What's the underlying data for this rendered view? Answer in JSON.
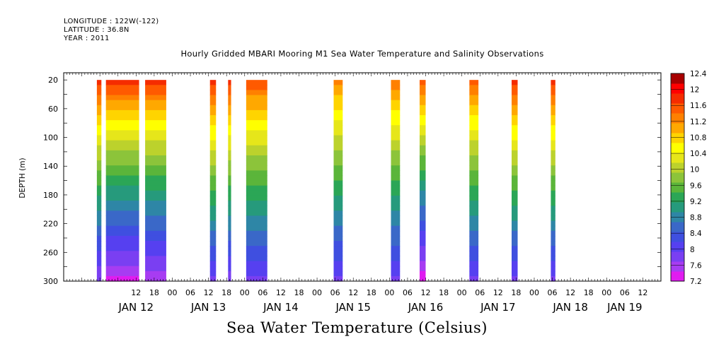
{
  "header": {
    "longitude": "LONGITUDE : 122W(-122)",
    "latitude": "LATITUDE : 36.8N",
    "year": "YEAR : 2011"
  },
  "chart_data": {
    "type": "heatmap",
    "title": "Hourly Gridded MBARI Mooring M1 Sea Water Temperature and Salinity Observations",
    "xlabel": "",
    "ylabel": "DEPTH (m)",
    "bottom_title": "Sea Water Temperature (Celsius)",
    "x_hours_range": [
      0,
      174
    ],
    "xlim_hours_since_jan12_00": [
      0,
      174
    ],
    "ylim": [
      300,
      10
    ],
    "y_ticks": [
      20,
      60,
      100,
      140,
      180,
      220,
      260,
      300
    ],
    "x_hour_ticks": [
      {
        "h": 12,
        "label": "12"
      },
      {
        "h": 18,
        "label": "18"
      },
      {
        "h": 24,
        "label": "00"
      },
      {
        "h": 30,
        "label": "06"
      },
      {
        "h": 36,
        "label": "12"
      },
      {
        "h": 42,
        "label": "18"
      },
      {
        "h": 48,
        "label": "00"
      },
      {
        "h": 54,
        "label": "06"
      },
      {
        "h": 60,
        "label": "12"
      },
      {
        "h": 66,
        "label": "18"
      },
      {
        "h": 72,
        "label": "00"
      },
      {
        "h": 78,
        "label": "06"
      },
      {
        "h": 84,
        "label": "12"
      },
      {
        "h": 90,
        "label": "18"
      },
      {
        "h": 96,
        "label": "00"
      },
      {
        "h": 102,
        "label": "06"
      },
      {
        "h": 108,
        "label": "12"
      },
      {
        "h": 114,
        "label": "18"
      },
      {
        "h": 120,
        "label": "00"
      },
      {
        "h": 126,
        "label": "06"
      },
      {
        "h": 132,
        "label": "12"
      },
      {
        "h": 138,
        "label": "18"
      },
      {
        "h": 144,
        "label": "00"
      },
      {
        "h": 150,
        "label": "06"
      },
      {
        "h": 156,
        "label": "12"
      },
      {
        "h": 162,
        "label": "18"
      },
      {
        "h": 168,
        "label": "00"
      },
      {
        "h": 174,
        "label": "06"
      },
      {
        "h": 180,
        "label": "12"
      }
    ],
    "date_labels": [
      {
        "h": 12,
        "label": "JAN 12"
      },
      {
        "h": 36,
        "label": "JAN 13"
      },
      {
        "h": 60,
        "label": "JAN 14"
      },
      {
        "h": 84,
        "label": "JAN 15"
      },
      {
        "h": 108,
        "label": "JAN 16"
      },
      {
        "h": 132,
        "label": "JAN 17"
      },
      {
        "h": 156,
        "label": "JAN 18"
      },
      {
        "h": 174,
        "label": "JAN 19"
      }
    ],
    "colorbar": {
      "levels": [
        7.2,
        7.6,
        8,
        8.4,
        8.8,
        9.2,
        9.6,
        10,
        10.4,
        10.8,
        11.2,
        11.6,
        12,
        12.4
      ],
      "labels": [
        "7.2",
        "7.6",
        "8",
        "8.4",
        "8.8",
        "9.2",
        "9.6",
        "10",
        "10.4",
        "10.8",
        "11.2",
        "11.6",
        "12",
        "12.4"
      ],
      "colors": [
        "#e01cf0",
        "#a73cf2",
        "#7a3ff2",
        "#5640f0",
        "#3f4fe0",
        "#3a68c8",
        "#2e86a6",
        "#269a7c",
        "#2ba656",
        "#5bb53a",
        "#8cc43a",
        "#bcd22c",
        "#e6e61a",
        "#ffff00",
        "#ffd400",
        "#ffa800",
        "#ff8000",
        "#ff5a00",
        "#f52c00",
        "#ff0000",
        "#a80000"
      ]
    },
    "series": [
      {
        "name": "",
        "h_start": -1,
        "h_end": 0.5,
        "top_depth": 20,
        "surface_temp": 11.9,
        "bottom_temp": 7.7
      },
      {
        "name": "",
        "h_start": 2,
        "h_end": 13,
        "top_depth": 20,
        "surface_temp": 11.9,
        "bottom_temp": 7.4
      },
      {
        "name": "",
        "h_start": 15,
        "h_end": 22,
        "top_depth": 20,
        "surface_temp": 11.9,
        "bottom_temp": 7.5
      },
      {
        "name": "",
        "h_start": 36.5,
        "h_end": 38.5,
        "top_depth": 20,
        "surface_temp": 11.9,
        "bottom_temp": 7.9
      },
      {
        "name": "",
        "h_start": 42.5,
        "h_end": 43.5,
        "top_depth": 20,
        "surface_temp": 11.9,
        "bottom_temp": 7.8
      },
      {
        "name": "",
        "h_start": 48.5,
        "h_end": 55.5,
        "top_depth": 20,
        "surface_temp": 11.7,
        "bottom_temp": 7.9
      },
      {
        "name": "",
        "h_start": 77.5,
        "h_end": 80.5,
        "top_depth": 20,
        "surface_temp": 11.4,
        "bottom_temp": 7.9
      },
      {
        "name": "",
        "h_start": 96.5,
        "h_end": 99.5,
        "top_depth": 20,
        "surface_temp": 11.5,
        "bottom_temp": 7.9
      },
      {
        "name": "",
        "h_start": 106,
        "h_end": 108,
        "top_depth": 20,
        "surface_temp": 11.7,
        "bottom_temp": 7.3
      },
      {
        "name": "",
        "h_start": 122.5,
        "h_end": 125.5,
        "top_depth": 20,
        "surface_temp": 11.6,
        "bottom_temp": 7.9
      },
      {
        "name": "",
        "h_start": 136.5,
        "h_end": 138.5,
        "top_depth": 20,
        "surface_temp": 11.9,
        "bottom_temp": 7.9
      },
      {
        "name": "",
        "h_start": 149.5,
        "h_end": 151,
        "top_depth": 20,
        "surface_temp": 11.9,
        "bottom_temp": 7.9
      }
    ]
  }
}
